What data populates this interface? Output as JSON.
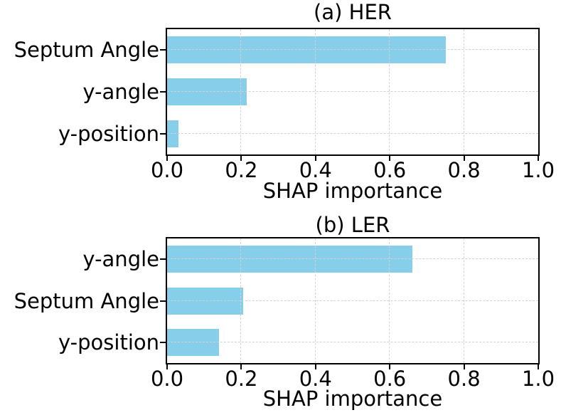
{
  "figure": {
    "background": "#ffffff"
  },
  "style": {
    "bar_color": "#87CEEB",
    "grid_color": "#d2d2d2",
    "spine_color": "#000000",
    "text_color": "#000000"
  },
  "chart_data": [
    {
      "type": "bar",
      "orientation": "horizontal",
      "title": "(a) HER",
      "categories": [
        "Septum Angle",
        "y-angle",
        "y-position"
      ],
      "values": [
        0.75,
        0.215,
        0.03
      ],
      "xlabel": "SHAP importance",
      "xlim": [
        0,
        1
      ],
      "xticks": [
        0,
        0.2,
        0.4,
        0.6,
        0.8,
        1.0
      ],
      "xtick_labels": [
        "0.0",
        "0.2",
        "0.4",
        "0.6",
        "0.8",
        "1.0"
      ],
      "bar_color": "#87CEEB",
      "grid": "dashed",
      "legend": "none"
    },
    {
      "type": "bar",
      "orientation": "horizontal",
      "title": "(b) LER",
      "categories": [
        "y-angle",
        "Septum Angle",
        "y-position"
      ],
      "values": [
        0.66,
        0.205,
        0.14
      ],
      "xlabel": "SHAP importance",
      "xlim": [
        0,
        1
      ],
      "xticks": [
        0,
        0.2,
        0.4,
        0.6,
        0.8,
        1.0
      ],
      "xtick_labels": [
        "0.0",
        "0.2",
        "0.4",
        "0.6",
        "0.8",
        "1.0"
      ],
      "bar_color": "#87CEEB",
      "grid": "dashed",
      "legend": "none"
    }
  ]
}
